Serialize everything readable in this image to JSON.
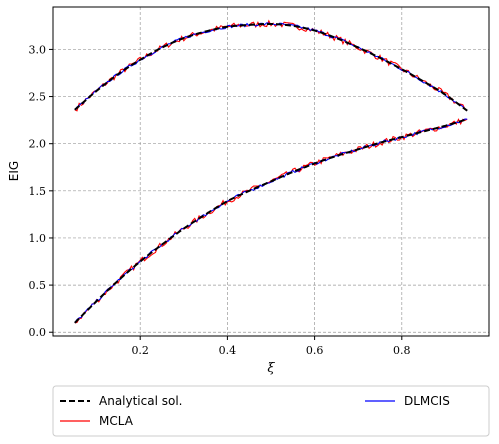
{
  "chart_data": {
    "type": "line",
    "xlabel": "ξ",
    "ylabel": "EIG",
    "xlim": [
      0.0,
      1.0
    ],
    "ylim": [
      -0.04,
      3.45
    ],
    "x_ticks": [
      "0.2",
      "0.4",
      "0.6",
      "0.8"
    ],
    "x_tick_values": [
      0.2,
      0.4,
      0.6,
      0.8
    ],
    "y_ticks": [
      "0.0",
      "0.5",
      "1.0",
      "1.5",
      "2.0",
      "2.5",
      "3.0"
    ],
    "y_tick_values": [
      0.0,
      0.5,
      1.0,
      1.5,
      2.0,
      2.5,
      3.0
    ],
    "grid": true,
    "legend_placement": "below",
    "x": [
      0.05,
      0.1,
      0.15,
      0.2,
      0.25,
      0.3,
      0.35,
      0.4,
      0.45,
      0.5,
      0.55,
      0.6,
      0.65,
      0.7,
      0.75,
      0.8,
      0.85,
      0.9,
      0.95
    ],
    "curves": [
      {
        "label": "upper",
        "values": [
          2.36,
          2.56,
          2.74,
          2.89,
          3.02,
          3.12,
          3.19,
          3.24,
          3.26,
          3.27,
          3.25,
          3.2,
          3.12,
          3.02,
          2.91,
          2.79,
          2.66,
          2.52,
          2.35
        ]
      },
      {
        "label": "lower",
        "values": [
          0.1,
          0.33,
          0.55,
          0.75,
          0.93,
          1.1,
          1.25,
          1.39,
          1.5,
          1.6,
          1.7,
          1.79,
          1.87,
          1.94,
          2.01,
          2.07,
          2.13,
          2.19,
          2.26
        ]
      }
    ],
    "series": [
      {
        "name": "Analytical sol.",
        "color": "#000000",
        "style": "dashed",
        "noise": 0.0
      },
      {
        "name": "MCLA",
        "color": "#ff0000",
        "style": "solid",
        "noise": 0.032
      },
      {
        "name": "DLMCIS",
        "color": "#0000ff",
        "style": "solid",
        "noise": 0.016
      }
    ]
  }
}
